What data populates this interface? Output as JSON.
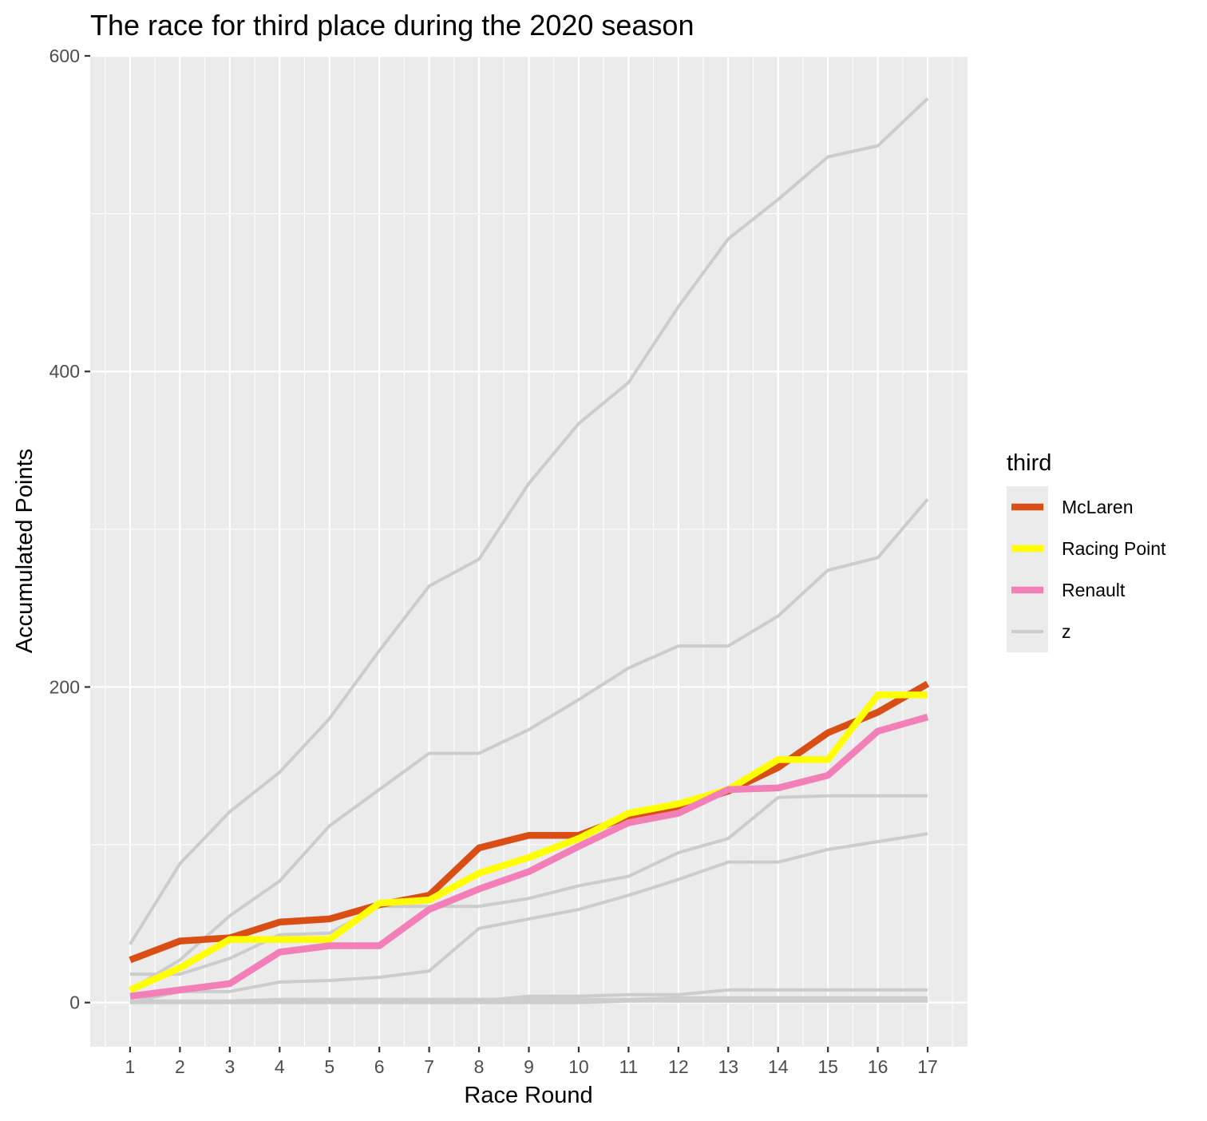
{
  "chart_data": {
    "type": "line",
    "title": "The race for third place during the 2020 season",
    "xlabel": "Race Round",
    "ylabel": "Accumulated Points",
    "x": [
      1,
      2,
      3,
      4,
      5,
      6,
      7,
      8,
      9,
      10,
      11,
      12,
      13,
      14,
      15,
      16,
      17
    ],
    "xlim": [
      0.2,
      17.8
    ],
    "ylim": [
      -28,
      600
    ],
    "yticks": [
      0,
      200,
      400,
      600
    ],
    "grid": true,
    "legend": {
      "title": "third",
      "position": "right",
      "entries": [
        {
          "label": "McLaren",
          "color": "#d94e14"
        },
        {
          "label": "Racing Point",
          "color": "#ffff00"
        },
        {
          "label": "Renault",
          "color": "#f27fb8"
        },
        {
          "label": "z",
          "color": "#cccccc"
        }
      ]
    },
    "series": [
      {
        "name": "McLaren",
        "color": "#d94e14",
        "highlight": true,
        "values": [
          27,
          39,
          41,
          51,
          53,
          62,
          68,
          98,
          106,
          106,
          118,
          124,
          134,
          149,
          171,
          184,
          202
        ]
      },
      {
        "name": "Racing Point",
        "color": "#ffff00",
        "highlight": true,
        "values": [
          8,
          22,
          40,
          40,
          40,
          63,
          65,
          82,
          92,
          104,
          120,
          126,
          135,
          154,
          154,
          195,
          195
        ]
      },
      {
        "name": "Renault",
        "color": "#f27fb8",
        "highlight": true,
        "values": [
          4,
          8,
          12,
          32,
          36,
          36,
          59,
          72,
          83,
          99,
          114,
          120,
          135,
          136,
          144,
          172,
          181
        ]
      },
      {
        "name": "z",
        "color": "#cccccc",
        "values": [
          37,
          88,
          121,
          146,
          180,
          223,
          264,
          281,
          329,
          367,
          393,
          441,
          484,
          509,
          536,
          543,
          573
        ]
      },
      {
        "name": "z",
        "color": "#cccccc",
        "values": [
          8,
          27,
          55,
          77,
          112,
          135,
          158,
          158,
          173,
          192,
          212,
          226,
          226,
          245,
          274,
          282,
          319
        ]
      },
      {
        "name": "z",
        "color": "#cccccc",
        "values": [
          18,
          18,
          28,
          43,
          44,
          61,
          61,
          61,
          66,
          74,
          80,
          95,
          104,
          130,
          131,
          131,
          131
        ]
      },
      {
        "name": "z",
        "color": "#cccccc",
        "values": [
          0,
          7,
          7,
          13,
          14,
          16,
          20,
          47,
          53,
          59,
          68,
          78,
          89,
          89,
          97,
          102,
          107
        ]
      },
      {
        "name": "z",
        "color": "#cccccc",
        "values": [
          1,
          1,
          1,
          1,
          1,
          1,
          1,
          1,
          4,
          4,
          5,
          5,
          8,
          8,
          8,
          8,
          8
        ]
      },
      {
        "name": "z",
        "color": "#cccccc",
        "values": [
          0,
          0,
          1,
          2,
          2,
          2,
          2,
          2,
          2,
          2,
          2,
          3,
          3,
          3,
          3,
          3,
          3
        ]
      },
      {
        "name": "z",
        "color": "#cccccc",
        "values": [
          0,
          0,
          0,
          0,
          0,
          0,
          0,
          0,
          0,
          0,
          1,
          1,
          1,
          1,
          1,
          1,
          1
        ]
      }
    ]
  }
}
